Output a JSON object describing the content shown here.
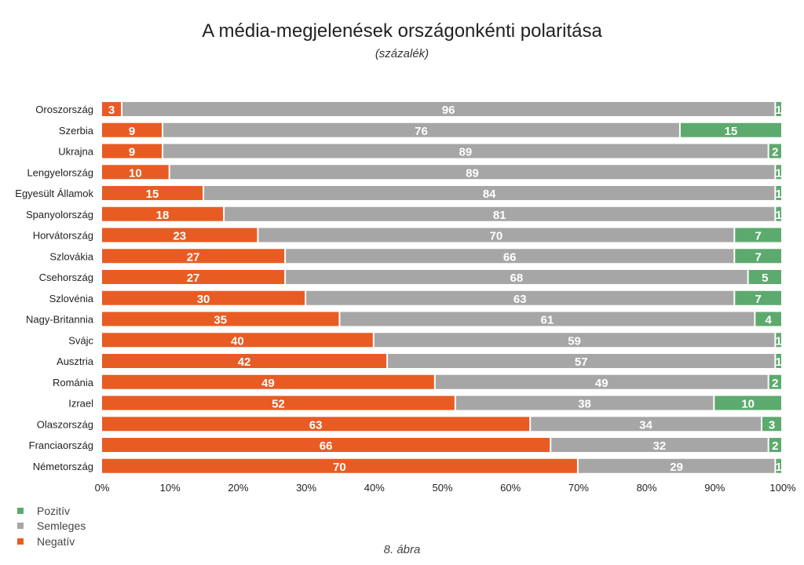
{
  "chart_data": {
    "type": "bar",
    "orientation": "horizontal",
    "stacked": true,
    "title": "A média-megjelenések országonkénti polaritása",
    "subtitle": "(százalék)",
    "caption": "8. ábra",
    "categories": [
      "Oroszország",
      "Szerbia",
      "Ukrajna",
      "Lengyelország",
      "Egyesült Államok",
      "Spanyolország",
      "Horvátország",
      "Szlovákia",
      "Csehország",
      "Szlovénia",
      "Nagy-Britannia",
      "Svájc",
      "Ausztria",
      "Románia",
      "Izrael",
      "Olaszország",
      "Franciaország",
      "Németország"
    ],
    "series": [
      {
        "name": "Negatív",
        "color": "#e85c24",
        "values": [
          3,
          9,
          9,
          10,
          15,
          18,
          23,
          27,
          27,
          30,
          35,
          40,
          42,
          49,
          52,
          63,
          66,
          70
        ]
      },
      {
        "name": "Semleges",
        "color": "#a6a6a6",
        "values": [
          96,
          76,
          89,
          89,
          84,
          81,
          70,
          66,
          68,
          63,
          61,
          59,
          57,
          49,
          38,
          34,
          32,
          29
        ]
      },
      {
        "name": "Pozitív",
        "color": "#5daa6e",
        "values": [
          1,
          15,
          2,
          1,
          1,
          1,
          7,
          7,
          5,
          7,
          4,
          1,
          1,
          2,
          10,
          3,
          2,
          1
        ]
      }
    ],
    "xlim": [
      0,
      100
    ],
    "xticks": [
      "0%",
      "10%",
      "20%",
      "30%",
      "40%",
      "50%",
      "60%",
      "70%",
      "80%",
      "90%",
      "100%"
    ],
    "grid": false,
    "legend": {
      "position": "bottom-left",
      "items": [
        {
          "label": "Pozitív",
          "color": "#5daa6e"
        },
        {
          "label": "Semleges",
          "color": "#a6a6a6"
        },
        {
          "label": "Negatív",
          "color": "#e85c24"
        }
      ]
    }
  }
}
